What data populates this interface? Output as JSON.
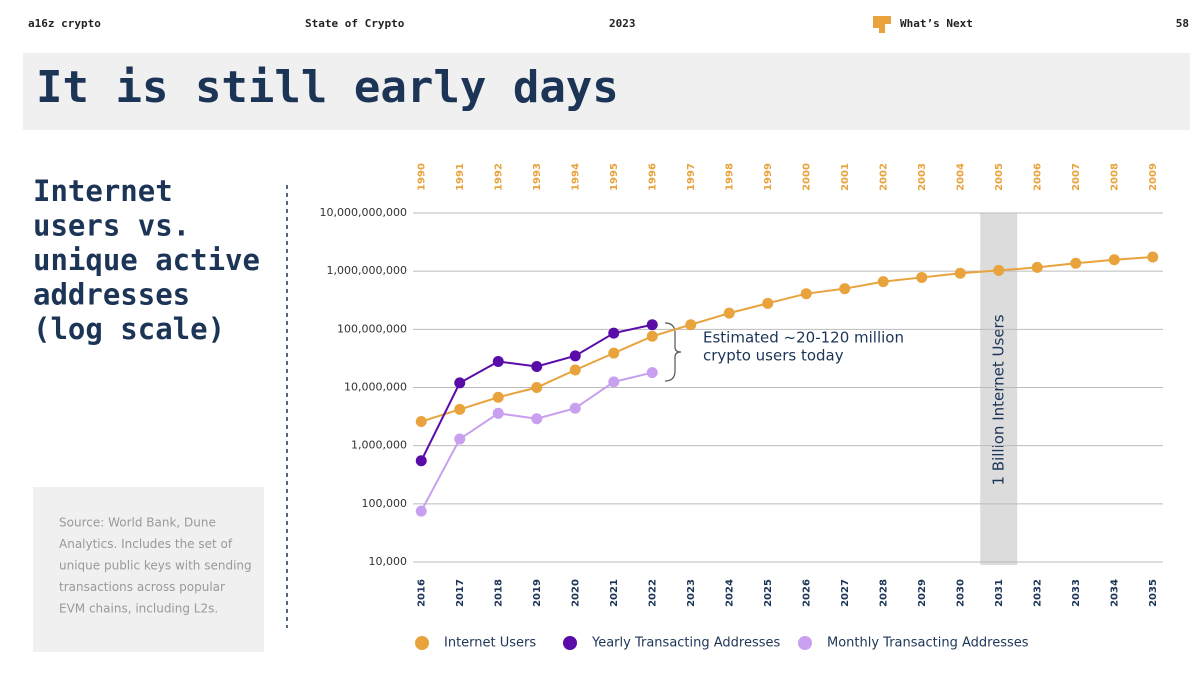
{
  "header": {
    "brand": "a16z crypto",
    "report": "State of Crypto",
    "year": "2023",
    "section": "What’s Next",
    "page": "58"
  },
  "title": "It is still early days",
  "sidebar": {
    "heading": [
      "Internet",
      "users vs.",
      "unique active",
      "addresses",
      "(log scale)"
    ],
    "source": [
      "Source: World Bank, Dune",
      "Analytics. Includes the set of",
      "unique public keys with sending",
      "transactions across popular",
      "EVM chains, including L2s."
    ]
  },
  "chart_data": {
    "type": "line",
    "log_y": true,
    "grid": true,
    "categories": [
      "2016",
      "2017",
      "2018",
      "2019",
      "2020",
      "2021",
      "2022",
      "2023",
      "2024",
      "2025",
      "2026",
      "2027",
      "2028",
      "2029",
      "2030",
      "2031",
      "2032",
      "2033",
      "2034",
      "2035"
    ],
    "top_categories": [
      "1990",
      "1991",
      "1992",
      "1993",
      "1994",
      "1995",
      "1996",
      "1997",
      "1998",
      "1999",
      "2000",
      "2001",
      "2002",
      "2003",
      "2004",
      "2005",
      "2006",
      "2007",
      "2008",
      "2009"
    ],
    "ylim": [
      10000,
      10000000000
    ],
    "yticks": [
      {
        "value": 10000,
        "label": "10,000"
      },
      {
        "value": 100000,
        "label": "100,000"
      },
      {
        "value": 1000000,
        "label": "1,000,000"
      },
      {
        "value": 10000000,
        "label": "10,000,000"
      },
      {
        "value": 100000000,
        "label": "100,000,000"
      },
      {
        "value": 1000000000,
        "label": "1,000,000,000"
      },
      {
        "value": 10000000000,
        "label": "10,000,000,000"
      }
    ],
    "series": [
      {
        "name": "Internet Users",
        "color": "#e8a33d",
        "values": [
          2600000,
          4200000,
          6800000,
          10000000,
          20000000,
          39000000,
          76000000,
          120000000,
          190000000,
          280000000,
          410000000,
          500000000,
          660000000,
          780000000,
          920000000,
          1030000000,
          1160000000,
          1370000000,
          1570000000,
          1750000000
        ]
      },
      {
        "name": "Yearly Transacting Addresses",
        "color": "#5a0ca8",
        "values": [
          550000,
          12000000,
          28000000,
          23000000,
          35000000,
          86000000,
          120000000,
          null,
          null,
          null,
          null,
          null,
          null,
          null,
          null,
          null,
          null,
          null,
          null,
          null
        ]
      },
      {
        "name": "Monthly Transacting Addresses",
        "color": "#c9a0f0",
        "values": [
          75000,
          1300000,
          3600000,
          2900000,
          4400000,
          12500000,
          18000000,
          null,
          null,
          null,
          null,
          null,
          null,
          null,
          null,
          null,
          null,
          null,
          null,
          null
        ]
      }
    ],
    "highlight": "2031",
    "highlight_label": "1 Billion Internet Users",
    "annotation": [
      "Estimated ~20-120 million",
      "crypto users today"
    ]
  }
}
